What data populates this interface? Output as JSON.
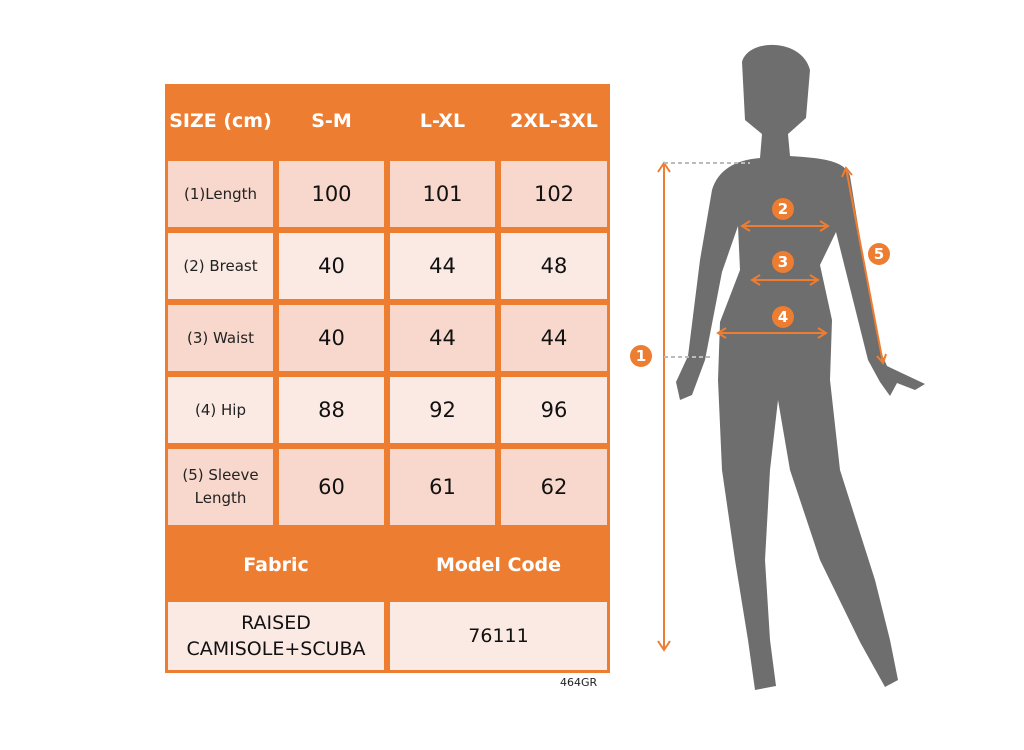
{
  "table": {
    "header": [
      "SIZE (cm)",
      "S-M",
      "L-XL",
      "2XL-3XL"
    ],
    "rows": [
      {
        "label": "(1)Length",
        "values": [
          "100",
          "101",
          "102"
        ]
      },
      {
        "label": "(2) Breast",
        "values": [
          "40",
          "44",
          "48"
        ]
      },
      {
        "label": "(3) Waist",
        "values": [
          "40",
          "44",
          "44"
        ]
      },
      {
        "label": "(4) Hip",
        "values": [
          "88",
          "92",
          "96"
        ]
      },
      {
        "label": "(5) Sleeve Length",
        "values": [
          "60",
          "61",
          "62"
        ]
      }
    ],
    "fabric_label": "Fabric",
    "model_code_label": "Model Code",
    "fabric_value": "RAISED CAMISOLE+SCUBA",
    "model_code_value": "76111"
  },
  "product_code": "464GR",
  "figure": {
    "markers": [
      "1",
      "2",
      "3",
      "4",
      "5"
    ],
    "accent": "#ED7D31",
    "silhouette": "#6E6E6E"
  }
}
